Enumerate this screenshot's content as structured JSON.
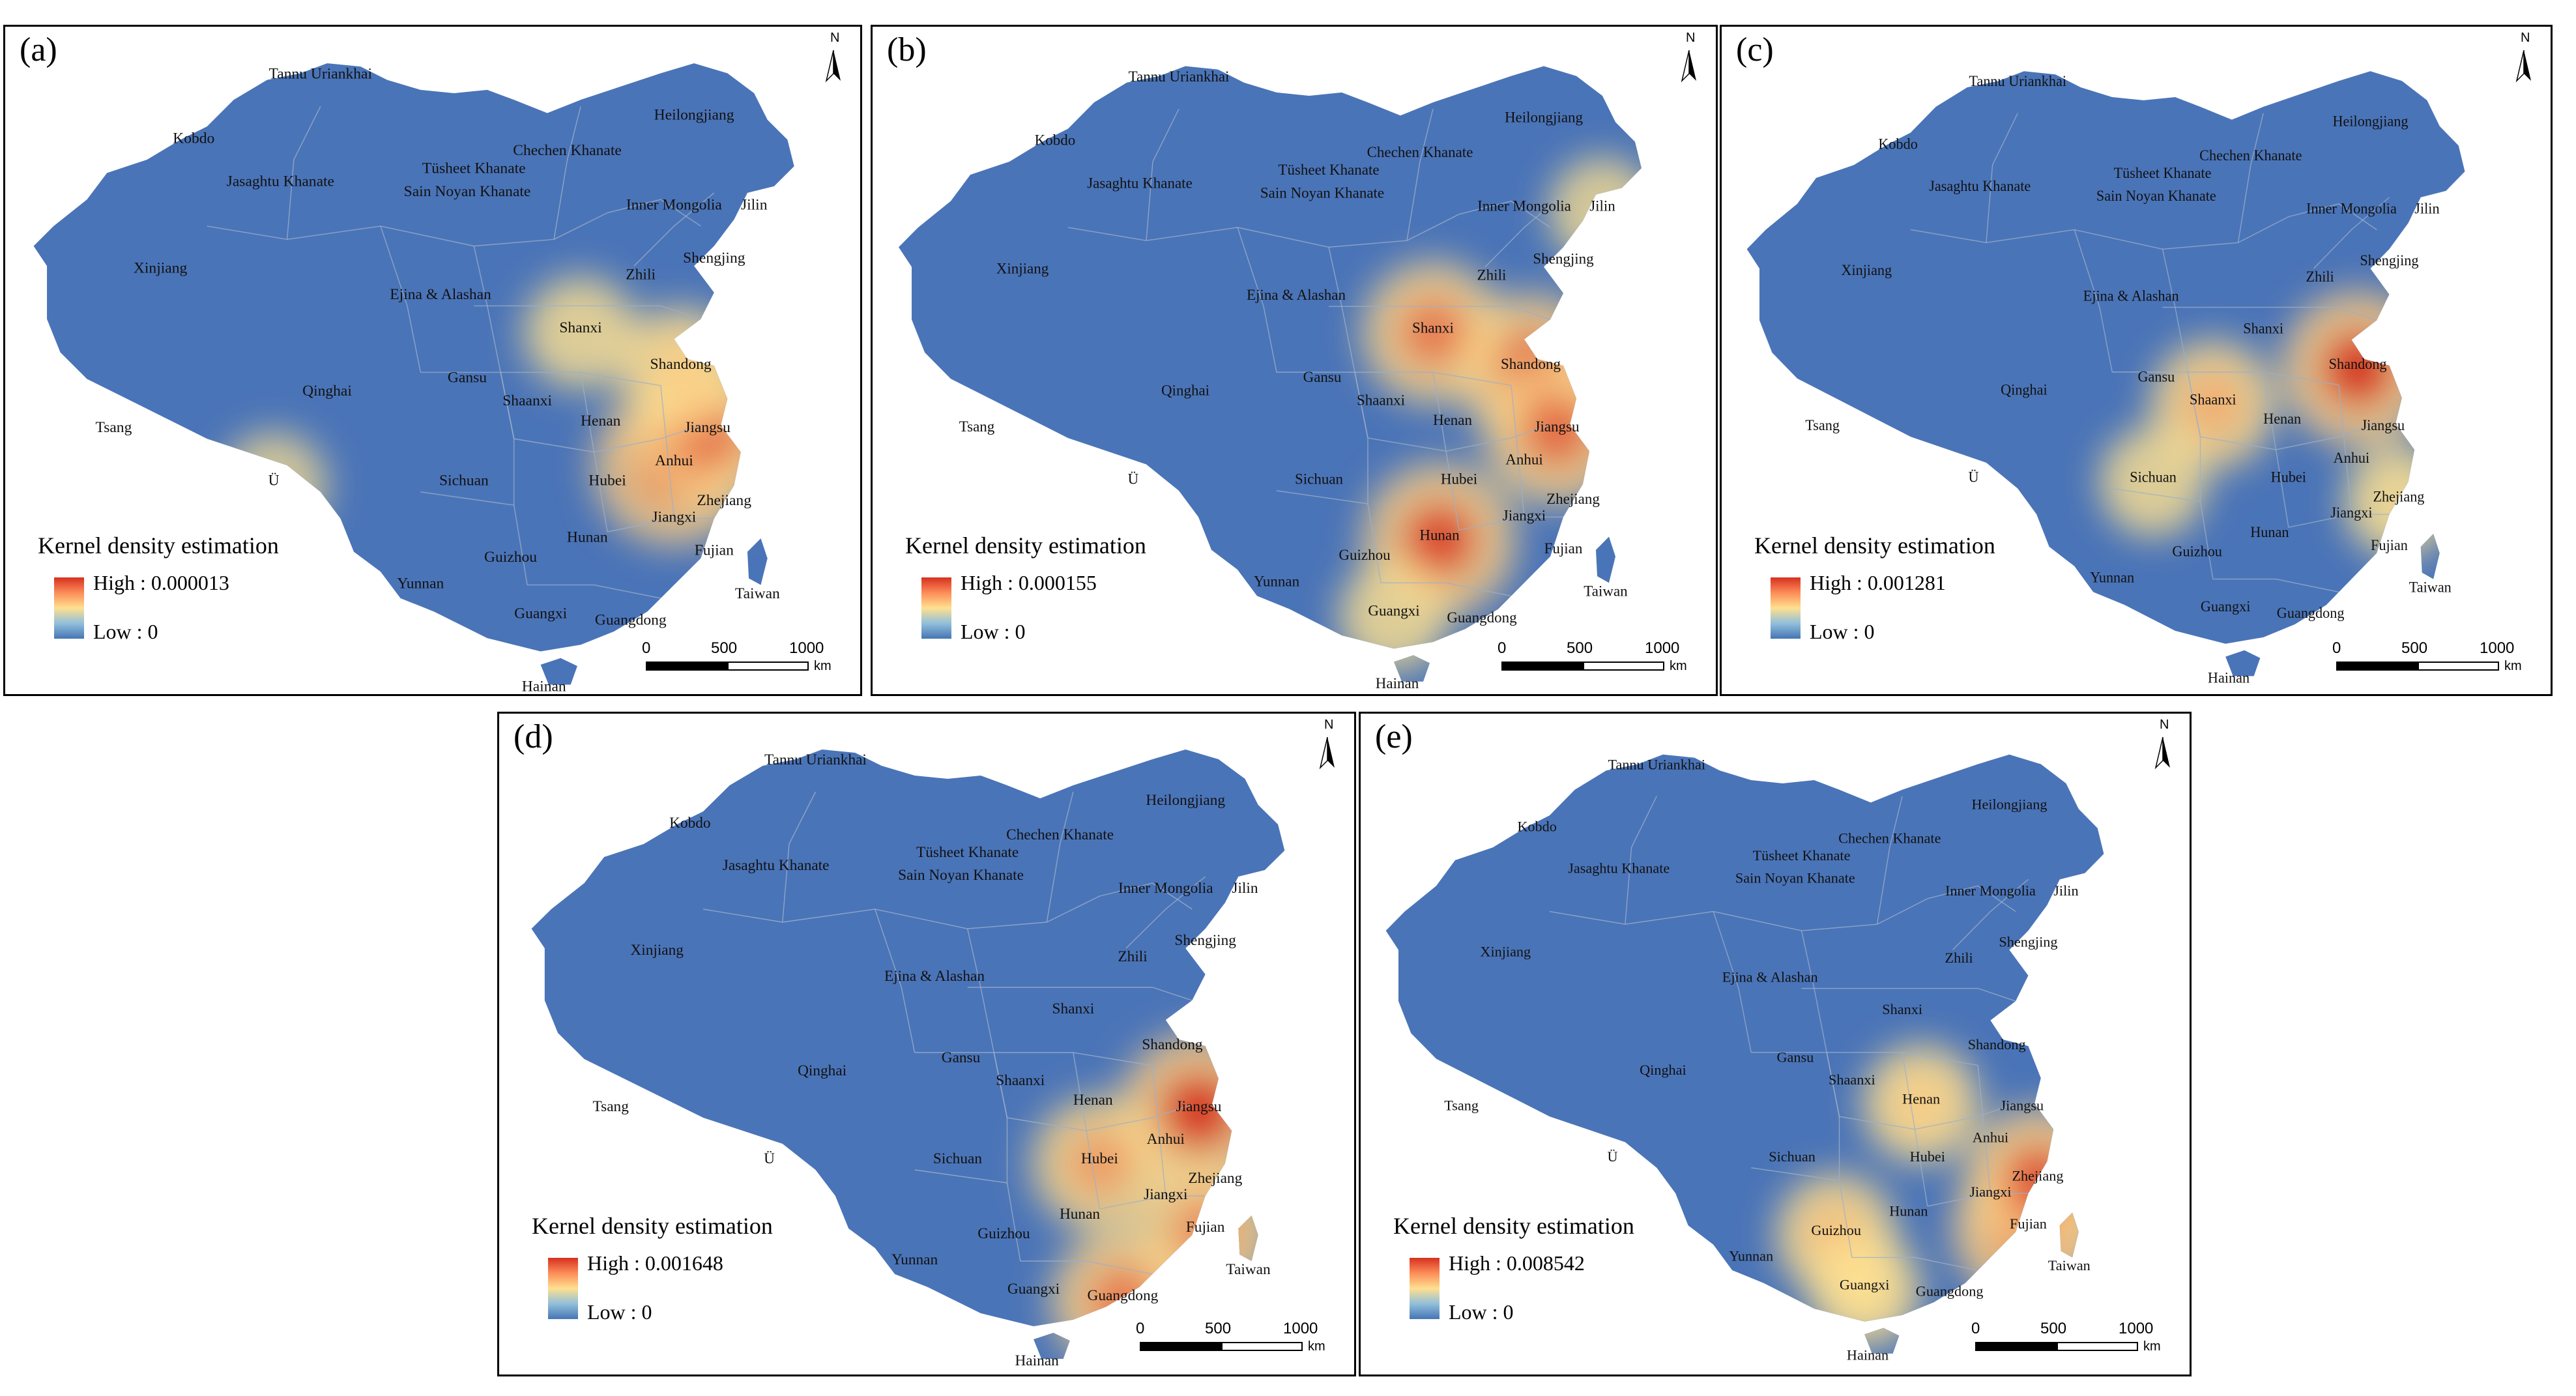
{
  "panels": [
    {
      "id": "a",
      "label": "(a)",
      "legend_title": "Kernel density estimation",
      "high": "High : 0.000013",
      "low": "Low : 0",
      "hotspots": [
        {
          "near": "Anhui",
          "level": 1.0
        },
        {
          "near": "Jiangsu",
          "level": 0.85
        },
        {
          "near": "Shandong",
          "level": 0.55
        },
        {
          "near": "Shanxi",
          "level": 0.4
        },
        {
          "near": "Ü",
          "level": 0.3
        }
      ]
    },
    {
      "id": "b",
      "label": "(b)",
      "legend_title": "Kernel density estimation",
      "high": "High : 0.000155",
      "low": "Low : 0",
      "hotspots": [
        {
          "near": "Shandong",
          "level": 0.9
        },
        {
          "near": "Shanxi",
          "level": 0.8
        },
        {
          "near": "Jiangsu",
          "level": 0.85
        },
        {
          "near": "Hunan",
          "level": 0.95
        },
        {
          "near": "Guangxi",
          "level": 0.4
        },
        {
          "near": "Jilin",
          "level": 0.35
        }
      ]
    },
    {
      "id": "c",
      "label": "(c)",
      "legend_title": "Kernel density estimation",
      "high": "High : 0.001281",
      "low": "Low : 0",
      "hotspots": [
        {
          "near": "Shandong",
          "level": 1.0
        },
        {
          "near": "Shaanxi",
          "level": 0.65
        },
        {
          "near": "Zhejiang",
          "level": 0.45
        },
        {
          "near": "Sichuan",
          "level": 0.4
        }
      ]
    },
    {
      "id": "d",
      "label": "(d)",
      "legend_title": "Kernel density estimation",
      "high": "High : 0.001648",
      "low": "Low : 0",
      "hotspots": [
        {
          "near": "Jiangsu",
          "level": 1.0
        },
        {
          "near": "Hubei",
          "level": 0.7
        },
        {
          "near": "Fujian",
          "level": 0.75
        },
        {
          "near": "Guangdong",
          "level": 0.8
        }
      ]
    },
    {
      "id": "e",
      "label": "(e)",
      "legend_title": "Kernel density estimation",
      "high": "High : 0.008542",
      "low": "Low : 0",
      "hotspots": [
        {
          "near": "Fujian",
          "level": 1.0
        },
        {
          "near": "Zhejiang",
          "level": 0.9
        },
        {
          "near": "Guizhou",
          "level": 0.6
        },
        {
          "near": "Henan",
          "level": 0.55
        },
        {
          "near": "Guangxi",
          "level": 0.5
        }
      ]
    }
  ],
  "places": {
    "tannu": "Tannu Uriankhai",
    "kobdo": "Kobdo",
    "heilongjiang": "Heilongjiang",
    "chechen": "Chechen Khanate",
    "tusheet": "Tüsheet Khanate",
    "jasaghtu": "Jasaghtu Khanate",
    "sain": "Sain Noyan Khanate",
    "inner_mongolia": "Inner Mongolia",
    "jilin": "Jilin",
    "xinjiang": "Xinjiang",
    "shengjing": "Shengjing",
    "zhili": "Zhili",
    "ejina": "Ejina & Alashan",
    "shanxi": "Shanxi",
    "shandong": "Shandong",
    "gansu": "Gansu",
    "qinghai": "Qinghai",
    "shaanxi": "Shaanxi",
    "henan": "Henan",
    "jiangsu": "Jiangsu",
    "tsang": "Tsang",
    "u": "Ü",
    "anhui": "Anhui",
    "sichuan": "Sichuan",
    "hubei": "Hubei",
    "zhejiang": "Zhejiang",
    "jiangxi": "Jiangxi",
    "hunan": "Hunan",
    "guizhou": "Guizhou",
    "fujian": "Fujian",
    "yunnan": "Yunnan",
    "taiwan": "Taiwan",
    "guangxi": "Guangxi",
    "guangdong": "Guangdong",
    "hainan": "Hainan"
  },
  "north_arrow": "N",
  "scale_bar": {
    "ticks": [
      "0",
      "500",
      "1000"
    ],
    "unit": "km"
  },
  "colors": {
    "low": "#4575b4",
    "mid": "#fee090",
    "high": "#d7301f",
    "land": "#4a74b8",
    "border": "#9db0c8"
  }
}
